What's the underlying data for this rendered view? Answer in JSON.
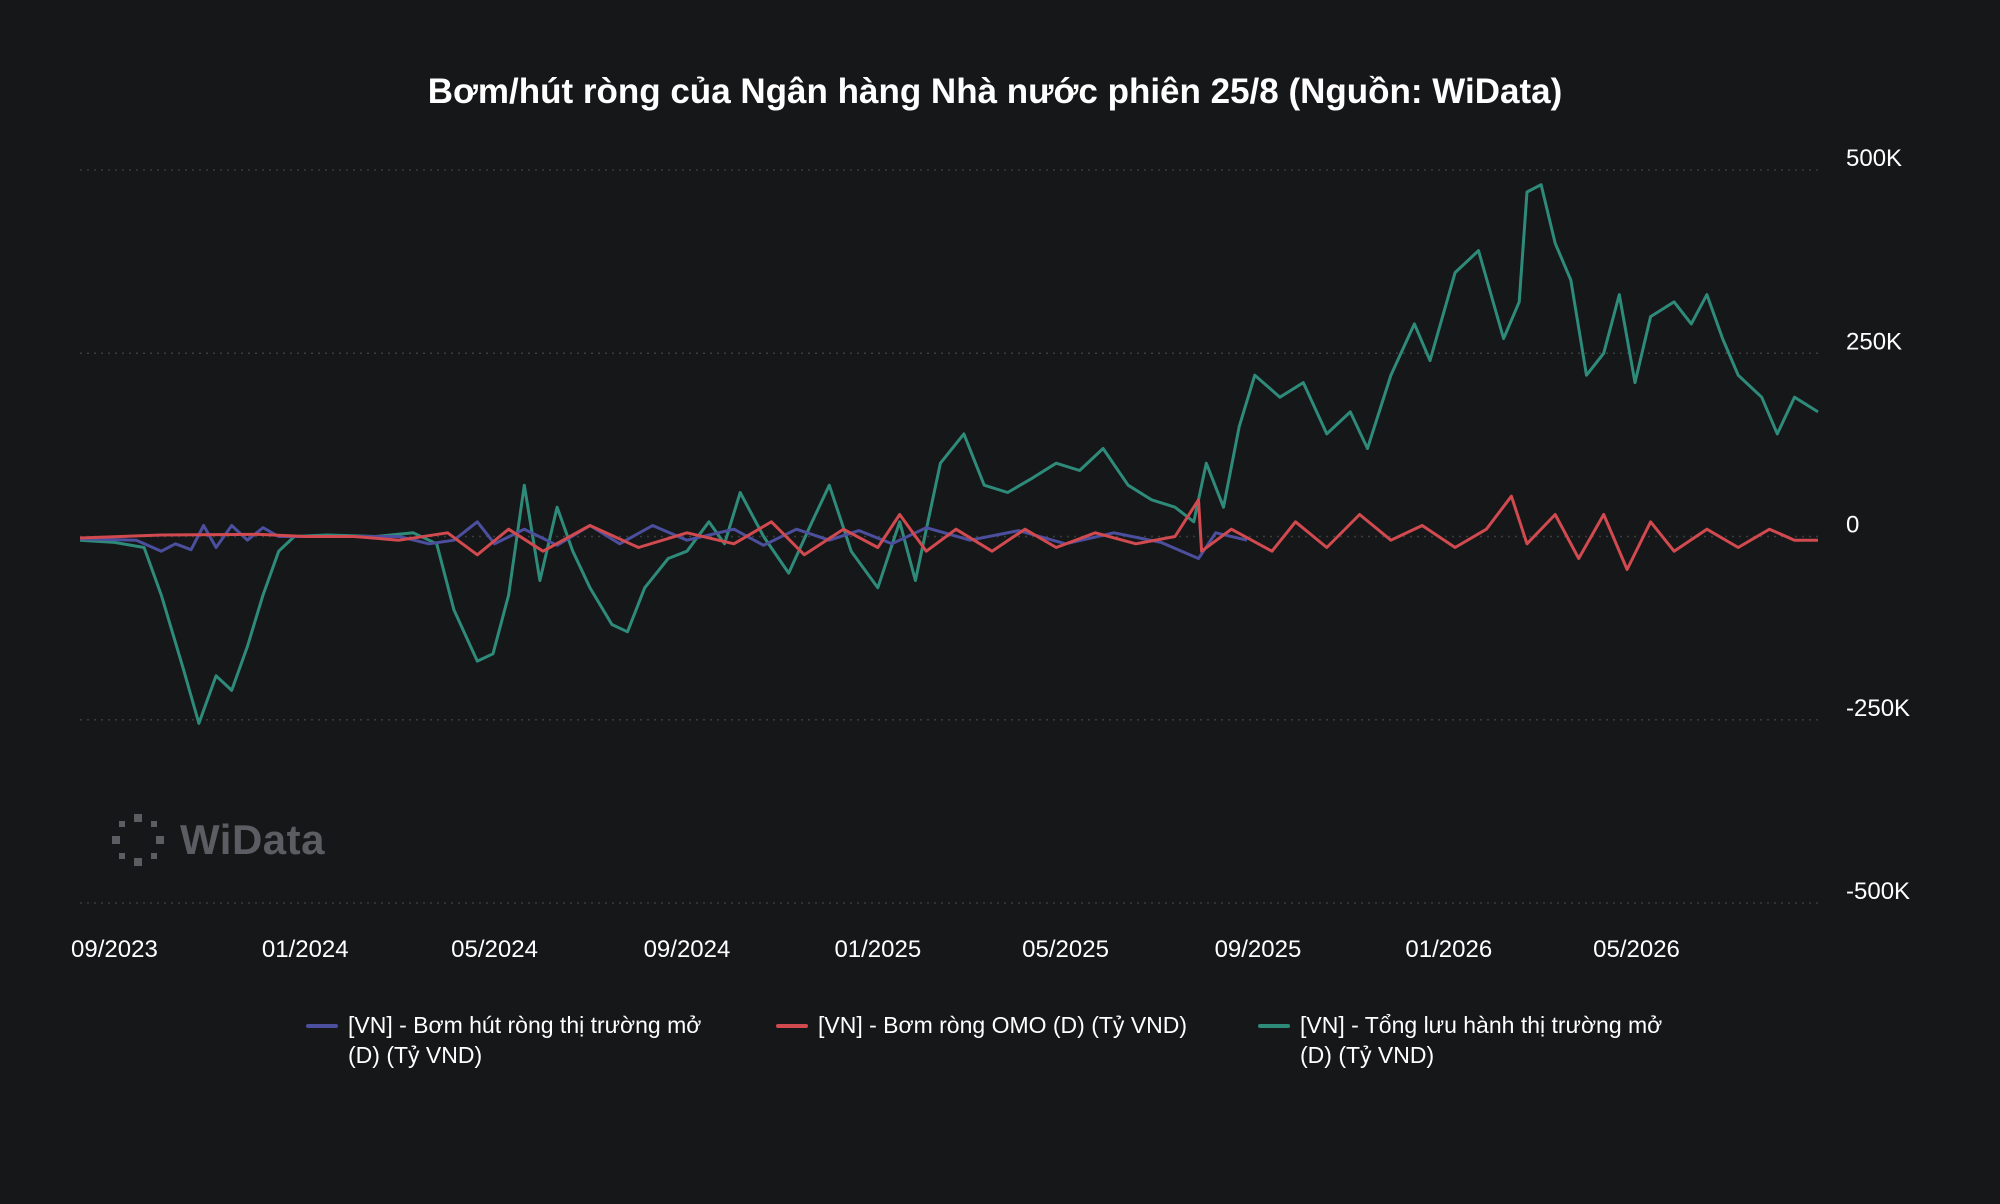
{
  "chart_data": {
    "type": "line",
    "title": "Bơm/hút ròng của Ngân hàng Nhà nước phiên 25/8 (Nguồn: WiData)",
    "x_tick_labels": [
      "09/2023",
      "01/2024",
      "05/2024",
      "09/2024",
      "01/2025",
      "05/2025",
      "09/2025",
      "01/2026",
      "05/2026"
    ],
    "y_tick_labels": [
      "500K",
      "250K",
      "0",
      "-250K",
      "-500K"
    ],
    "y_ticks": [
      500000,
      250000,
      0,
      -250000,
      -500000
    ],
    "ylim": [
      -500000,
      500000
    ],
    "xlim": [
      "2023-08-10",
      "2026-08-25"
    ],
    "grid": true,
    "legend_position": "bottom",
    "series": [
      {
        "name": "[VN] - Bơm hút ròng thị trường mở\n(D) (Tỷ VND)",
        "color": "#4b4f9e",
        "points": [
          [
            "2023-08-10",
            -3000
          ],
          [
            "2023-09-15",
            -5000
          ],
          [
            "2023-10-01",
            -20000
          ],
          [
            "2023-10-10",
            -10000
          ],
          [
            "2023-10-20",
            -18000
          ],
          [
            "2023-10-28",
            15000
          ],
          [
            "2023-11-05",
            -15000
          ],
          [
            "2023-11-15",
            15000
          ],
          [
            "2023-11-25",
            -5000
          ],
          [
            "2023-12-05",
            12000
          ],
          [
            "2023-12-15",
            0
          ],
          [
            "2024-01-01",
            0
          ],
          [
            "2024-03-01",
            0
          ],
          [
            "2024-03-20",
            -10000
          ],
          [
            "2024-04-05",
            -5000
          ],
          [
            "2024-04-20",
            20000
          ],
          [
            "2024-05-01",
            -10000
          ],
          [
            "2024-05-20",
            10000
          ],
          [
            "2024-06-10",
            -12000
          ],
          [
            "2024-07-01",
            15000
          ],
          [
            "2024-07-20",
            -10000
          ],
          [
            "2024-08-10",
            15000
          ],
          [
            "2024-09-01",
            -5000
          ],
          [
            "2024-10-01",
            10000
          ],
          [
            "2024-10-20",
            -12000
          ],
          [
            "2024-11-10",
            10000
          ],
          [
            "2024-12-01",
            -5000
          ],
          [
            "2024-12-20",
            8000
          ],
          [
            "2025-01-10",
            -10000
          ],
          [
            "2025-02-01",
            12000
          ],
          [
            "2025-03-01",
            -5000
          ],
          [
            "2025-04-01",
            8000
          ],
          [
            "2025-05-01",
            -10000
          ],
          [
            "2025-06-01",
            5000
          ],
          [
            "2025-07-01",
            -8000
          ],
          [
            "2025-07-25",
            -30000
          ],
          [
            "2025-08-05",
            5000
          ],
          [
            "2025-08-25",
            -5000
          ]
        ]
      },
      {
        "name": "[VN] - Bơm ròng OMO (D) (Tỷ VND)",
        "color": "#d04a4f",
        "points": [
          [
            "2023-08-10",
            -2000
          ],
          [
            "2023-10-01",
            2000
          ],
          [
            "2023-12-01",
            3000
          ],
          [
            "2024-01-01",
            0
          ],
          [
            "2024-02-01",
            0
          ],
          [
            "2024-03-01",
            -5000
          ],
          [
            "2024-04-01",
            5000
          ],
          [
            "2024-04-20",
            -25000
          ],
          [
            "2024-05-10",
            10000
          ],
          [
            "2024-06-01",
            -20000
          ],
          [
            "2024-07-01",
            15000
          ],
          [
            "2024-08-01",
            -15000
          ],
          [
            "2024-09-01",
            5000
          ],
          [
            "2024-10-01",
            -10000
          ],
          [
            "2024-10-25",
            20000
          ],
          [
            "2024-11-15",
            -25000
          ],
          [
            "2024-12-10",
            10000
          ],
          [
            "2025-01-01",
            -15000
          ],
          [
            "2025-01-15",
            30000
          ],
          [
            "2025-02-01",
            -20000
          ],
          [
            "2025-02-20",
            10000
          ],
          [
            "2025-03-15",
            -20000
          ],
          [
            "2025-04-05",
            10000
          ],
          [
            "2025-04-25",
            -15000
          ],
          [
            "2025-05-20",
            5000
          ],
          [
            "2025-06-15",
            -10000
          ],
          [
            "2025-07-10",
            0
          ],
          [
            "2025-07-25",
            50000
          ],
          [
            "2025-07-27",
            -20000
          ],
          [
            "2025-08-15",
            10000
          ],
          [
            "2025-09-10",
            -20000
          ],
          [
            "2025-09-25",
            20000
          ],
          [
            "2025-10-15",
            -15000
          ],
          [
            "2025-11-05",
            30000
          ],
          [
            "2025-11-25",
            -5000
          ],
          [
            "2025-12-15",
            15000
          ],
          [
            "2026-01-05",
            -15000
          ],
          [
            "2026-01-25",
            10000
          ],
          [
            "2026-02-10",
            55000
          ],
          [
            "2026-02-20",
            -10000
          ],
          [
            "2026-03-10",
            30000
          ],
          [
            "2026-03-25",
            -30000
          ],
          [
            "2026-04-10",
            30000
          ],
          [
            "2026-04-25",
            -45000
          ],
          [
            "2026-05-10",
            20000
          ],
          [
            "2026-05-25",
            -20000
          ],
          [
            "2026-06-15",
            10000
          ],
          [
            "2026-07-05",
            -15000
          ],
          [
            "2026-07-25",
            10000
          ],
          [
            "2026-08-10",
            -5000
          ],
          [
            "2026-08-25",
            -5000
          ]
        ]
      },
      {
        "name": "[VN] - Tổng lưu hành thị trường mở\n (D) (Tỷ VND)",
        "color": "#2e8b7a",
        "points": [
          [
            "2023-08-10",
            -5000
          ],
          [
            "2023-09-01",
            -8000
          ],
          [
            "2023-09-20",
            -15000
          ],
          [
            "2023-10-01",
            -80000
          ],
          [
            "2023-10-15",
            -180000
          ],
          [
            "2023-10-25",
            -255000
          ],
          [
            "2023-11-05",
            -190000
          ],
          [
            "2023-11-15",
            -210000
          ],
          [
            "2023-11-25",
            -150000
          ],
          [
            "2023-12-05",
            -80000
          ],
          [
            "2023-12-15",
            -20000
          ],
          [
            "2023-12-25",
            0
          ],
          [
            "2024-01-15",
            2000
          ],
          [
            "2024-02-15",
            0
          ],
          [
            "2024-03-10",
            5000
          ],
          [
            "2024-03-25",
            -10000
          ],
          [
            "2024-04-05",
            -100000
          ],
          [
            "2024-04-20",
            -170000
          ],
          [
            "2024-04-30",
            -160000
          ],
          [
            "2024-05-10",
            -80000
          ],
          [
            "2024-05-20",
            70000
          ],
          [
            "2024-05-30",
            -60000
          ],
          [
            "2024-06-10",
            40000
          ],
          [
            "2024-06-20",
            -20000
          ],
          [
            "2024-07-01",
            -70000
          ],
          [
            "2024-07-15",
            -120000
          ],
          [
            "2024-07-25",
            -130000
          ],
          [
            "2024-08-05",
            -70000
          ],
          [
            "2024-08-20",
            -30000
          ],
          [
            "2024-09-01",
            -20000
          ],
          [
            "2024-09-15",
            20000
          ],
          [
            "2024-09-25",
            -10000
          ],
          [
            "2024-10-05",
            60000
          ],
          [
            "2024-10-20",
            0
          ],
          [
            "2024-11-05",
            -50000
          ],
          [
            "2024-11-20",
            20000
          ],
          [
            "2024-12-01",
            70000
          ],
          [
            "2024-12-15",
            -20000
          ],
          [
            "2025-01-01",
            -70000
          ],
          [
            "2025-01-15",
            20000
          ],
          [
            "2025-01-25",
            -60000
          ],
          [
            "2025-02-10",
            100000
          ],
          [
            "2025-02-25",
            140000
          ],
          [
            "2025-03-10",
            70000
          ],
          [
            "2025-03-25",
            60000
          ],
          [
            "2025-04-10",
            80000
          ],
          [
            "2025-04-25",
            100000
          ],
          [
            "2025-05-10",
            90000
          ],
          [
            "2025-05-25",
            120000
          ],
          [
            "2025-06-10",
            70000
          ],
          [
            "2025-06-25",
            50000
          ],
          [
            "2025-07-10",
            40000
          ],
          [
            "2025-07-22",
            20000
          ],
          [
            "2025-07-30",
            100000
          ],
          [
            "2025-08-10",
            40000
          ],
          [
            "2025-08-20",
            150000
          ],
          [
            "2025-08-30",
            220000
          ],
          [
            "2025-09-15",
            190000
          ],
          [
            "2025-09-30",
            210000
          ],
          [
            "2025-10-15",
            140000
          ],
          [
            "2025-10-30",
            170000
          ],
          [
            "2025-11-10",
            120000
          ],
          [
            "2025-11-25",
            220000
          ],
          [
            "2025-12-10",
            290000
          ],
          [
            "2025-12-20",
            240000
          ],
          [
            "2026-01-05",
            360000
          ],
          [
            "2026-01-20",
            390000
          ],
          [
            "2026-02-05",
            270000
          ],
          [
            "2026-02-15",
            320000
          ],
          [
            "2026-02-20",
            470000
          ],
          [
            "2026-03-01",
            480000
          ],
          [
            "2026-03-10",
            400000
          ],
          [
            "2026-03-20",
            350000
          ],
          [
            "2026-03-30",
            220000
          ],
          [
            "2026-04-10",
            250000
          ],
          [
            "2026-04-20",
            330000
          ],
          [
            "2026-04-30",
            210000
          ],
          [
            "2026-05-10",
            300000
          ],
          [
            "2026-05-25",
            320000
          ],
          [
            "2026-06-05",
            290000
          ],
          [
            "2026-06-15",
            330000
          ],
          [
            "2026-06-25",
            270000
          ],
          [
            "2026-07-05",
            220000
          ],
          [
            "2026-07-20",
            190000
          ],
          [
            "2026-07-30",
            140000
          ],
          [
            "2026-08-10",
            190000
          ],
          [
            "2026-08-25",
            170000
          ]
        ]
      }
    ]
  },
  "watermark": {
    "text": "WiData",
    "icon": "dots-ring-icon"
  }
}
